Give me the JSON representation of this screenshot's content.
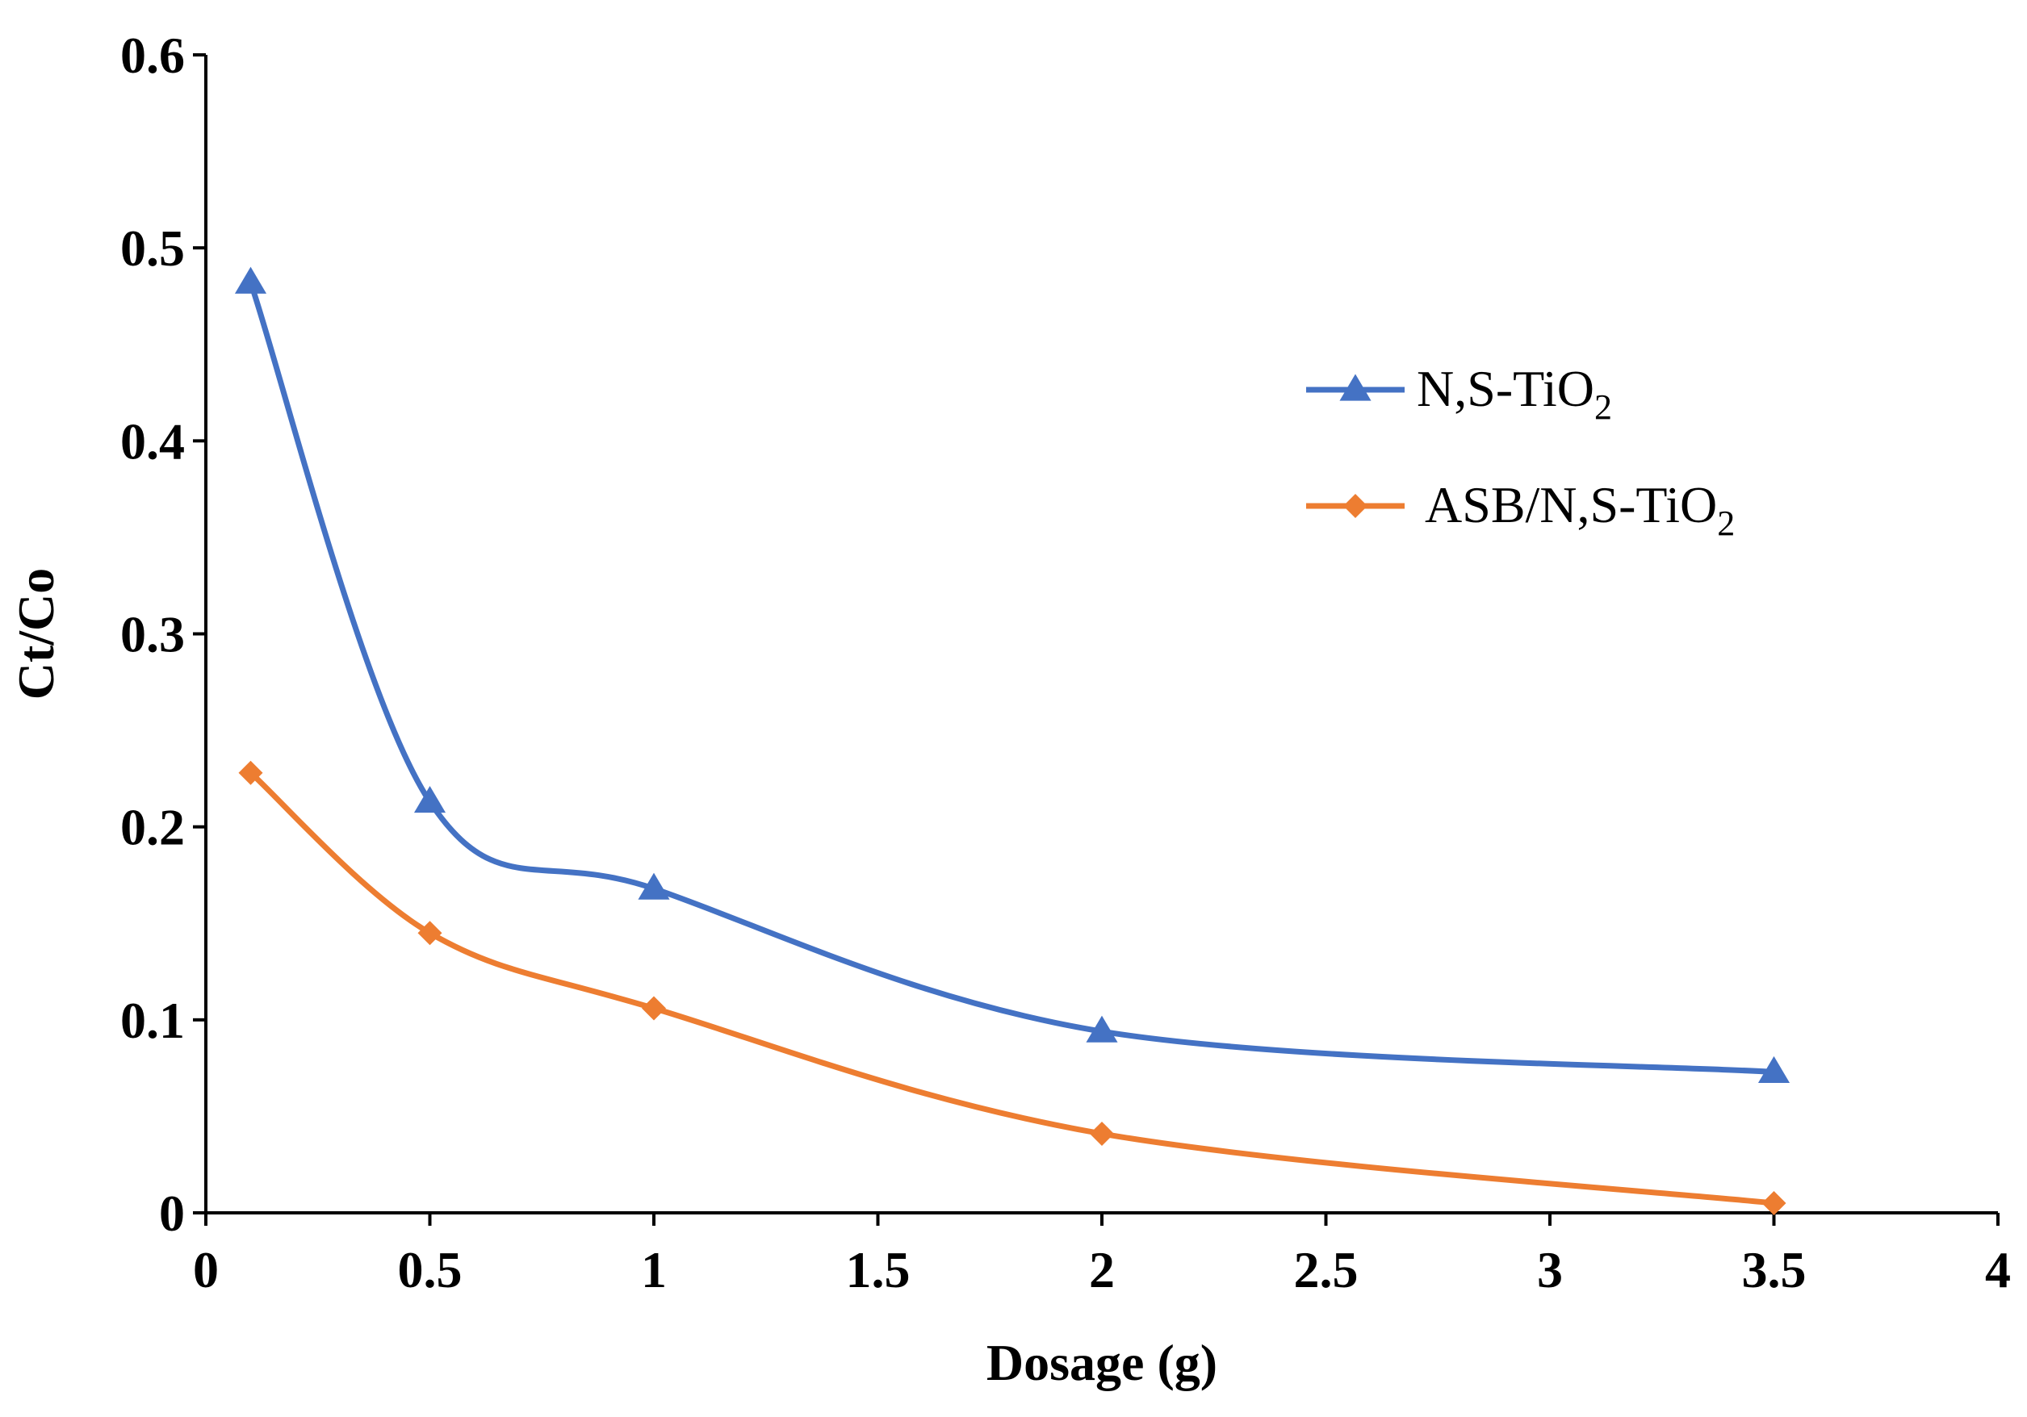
{
  "chart_data": {
    "type": "line",
    "title": "",
    "xlabel": "Dosage (g)",
    "ylabel": "Ct/Co",
    "xlim": [
      0,
      4
    ],
    "ylim": [
      0,
      0.6
    ],
    "xticks": [
      0,
      0.5,
      1,
      1.5,
      2,
      2.5,
      3,
      3.5,
      4
    ],
    "xtick_labels": [
      "0",
      "0.5",
      "1",
      "1.5",
      "2",
      "2.5",
      "3",
      "3.5",
      "4"
    ],
    "yticks": [
      0,
      0.1,
      0.2,
      0.3,
      0.4,
      0.5,
      0.6
    ],
    "ytick_labels": [
      "0",
      "0.1",
      "0.2",
      "0.3",
      "0.4",
      "0.5",
      "0.6"
    ],
    "grid": false,
    "smooth": true,
    "legend_position": "right",
    "series": [
      {
        "name": "N,S-TiO",
        "subscript": "2",
        "color": "#4472C4",
        "marker": "triangle",
        "x": [
          0.1,
          0.5,
          1,
          2,
          3.5
        ],
        "y": [
          0.482,
          0.213,
          0.168,
          0.094,
          0.073
        ]
      },
      {
        "name": "ASB/N,S-TiO",
        "subscript": "2",
        "color": "#ED7D31",
        "marker": "diamond",
        "x": [
          0.1,
          0.5,
          1,
          2,
          3.5
        ],
        "y": [
          0.228,
          0.145,
          0.106,
          0.041,
          0.005
        ]
      }
    ]
  }
}
